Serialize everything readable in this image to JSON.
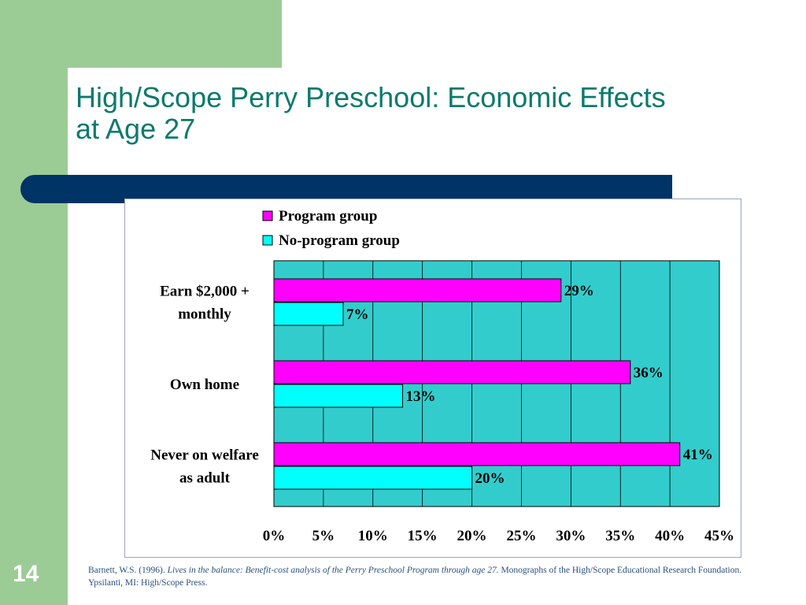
{
  "slide": {
    "title_line1": "High/Scope Perry Preschool: Economic Effects",
    "title_line2": "at Age 27",
    "page_number": "14",
    "citation_author": "Barnett, W.S. (1996). ",
    "citation_title": "Lives in the balance: Benefit-cost analysis of the Perry Preschool Program through age 27.",
    "citation_rest": " Monographs of the High/Scope Educational Research Foundation. Ypsilanti, MI: High/Scope Press.",
    "colors": {
      "green": "#9ccc95",
      "navy": "#003366",
      "title": "#0b7a6c",
      "plot_bg": "#33cccc"
    }
  },
  "chart_data": {
    "type": "bar",
    "orientation": "horizontal",
    "categories": [
      "Earn $2,000 + monthly",
      "Own home",
      "Never on welfare as adult"
    ],
    "category_lines": [
      [
        "Earn $2,000 +",
        "monthly"
      ],
      [
        "Own home"
      ],
      [
        "Never on welfare",
        "as adult"
      ]
    ],
    "series": [
      {
        "name": "Program group",
        "values": [
          29,
          36,
          41
        ],
        "labels": [
          "29%",
          "36%",
          "41%"
        ],
        "color": "#ff00ff"
      },
      {
        "name": "No-program group",
        "values": [
          7,
          13,
          20
        ],
        "labels": [
          "7%",
          "13%",
          "20%"
        ],
        "color": "#00ffff"
      }
    ],
    "xlim": [
      0,
      45
    ],
    "xticks": [
      0,
      5,
      10,
      15,
      20,
      25,
      30,
      35,
      40,
      45
    ],
    "xtick_labels": [
      "0%",
      "5%",
      "10%",
      "15%",
      "20%",
      "25%",
      "30%",
      "35%",
      "40%",
      "45%"
    ],
    "grid": true,
    "legend": "top"
  }
}
